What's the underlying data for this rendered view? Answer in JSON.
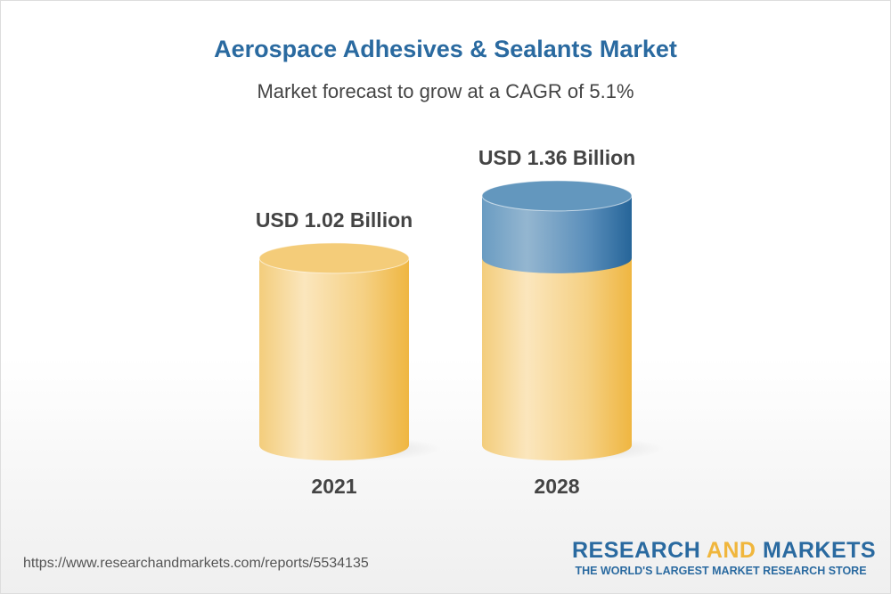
{
  "title": "Aerospace Adhesives & Sealants Market",
  "subtitle": "Market forecast to grow at a CAGR of 5.1%",
  "chart_data": {
    "type": "bar",
    "style": "3d-cylinder",
    "categories": [
      "2021",
      "2028"
    ],
    "values": [
      1.02,
      1.36
    ],
    "data_labels": [
      "USD 1.02 Billion",
      "USD 1.36 Billion"
    ],
    "unit": "USD Billion",
    "cagr": "5.1%",
    "colors": {
      "base": "#f2c466",
      "growth": "#4f86b4"
    }
  },
  "footer": {
    "url": "https://www.researchandmarkets.com/reports/5534135",
    "logo_word1": "RESEARCH",
    "logo_word2": "AND",
    "logo_word3": "MARKETS",
    "tagline": "THE WORLD'S LARGEST MARKET RESEARCH STORE"
  }
}
